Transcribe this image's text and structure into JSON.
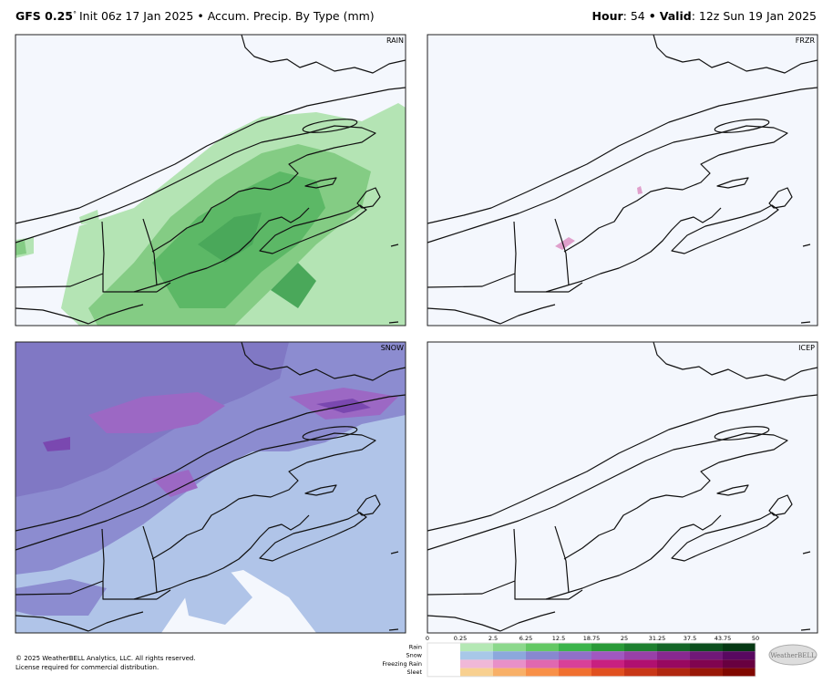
{
  "header": {
    "model": "GFS 0.25",
    "degree": "°",
    "init": "Init 06z 17 Jan 2025",
    "separator": "•",
    "product": "Accum. Precip. By Type (mm)",
    "hour_label": "Hour",
    "hour_value": ": 54",
    "valid_label": "Valid",
    "valid_value": ": 12z Sun 19 Jan 2025"
  },
  "panels": [
    {
      "label": "RAIN"
    },
    {
      "label": "FRZR"
    },
    {
      "label": "SNOW"
    },
    {
      "label": "ICEP"
    }
  ],
  "legend": {
    "ticks": [
      0,
      0.25,
      2.5,
      6.25,
      12.5,
      18.75,
      25,
      31.25,
      37.5,
      43.75,
      50
    ],
    "rows": [
      "Rain",
      "Snow",
      "Freezing Rain",
      "Sleet"
    ]
  },
  "footer": {
    "copyright": "© 2025 WeatherBELL Analytics, LLC. All rights reserved.",
    "license": "License required for commercial distribution."
  },
  "logo": "WeatherBELL"
}
